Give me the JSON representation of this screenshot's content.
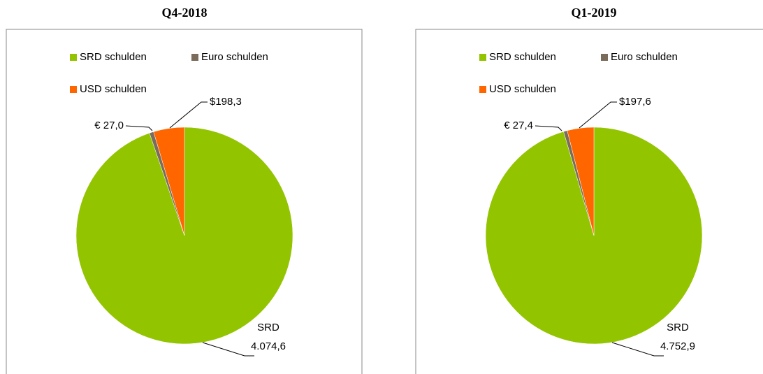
{
  "chart_data": [
    {
      "type": "pie",
      "title": "Q4-2018",
      "categories": [
        "SRD schulden",
        "Euro schulden",
        "USD schulden"
      ],
      "values": [
        4074.6,
        27.0,
        198.3
      ],
      "value_labels": [
        "SRD\n4.074,6",
        "€ 27,0",
        "$198,3"
      ],
      "colors": [
        "#92c400",
        "#7a6b5a",
        "#ff6600"
      ],
      "legend": "top"
    },
    {
      "type": "pie",
      "title": "Q1-2019",
      "categories": [
        "SRD schulden",
        "Euro schulden",
        "USD schulden"
      ],
      "values": [
        4752.9,
        27.4,
        197.6
      ],
      "value_labels": [
        "SRD\n4.752,9",
        "€ 27,4",
        "$197,6"
      ],
      "colors": [
        "#92c400",
        "#7a6b5a",
        "#ff6600"
      ],
      "legend": "top"
    }
  ]
}
